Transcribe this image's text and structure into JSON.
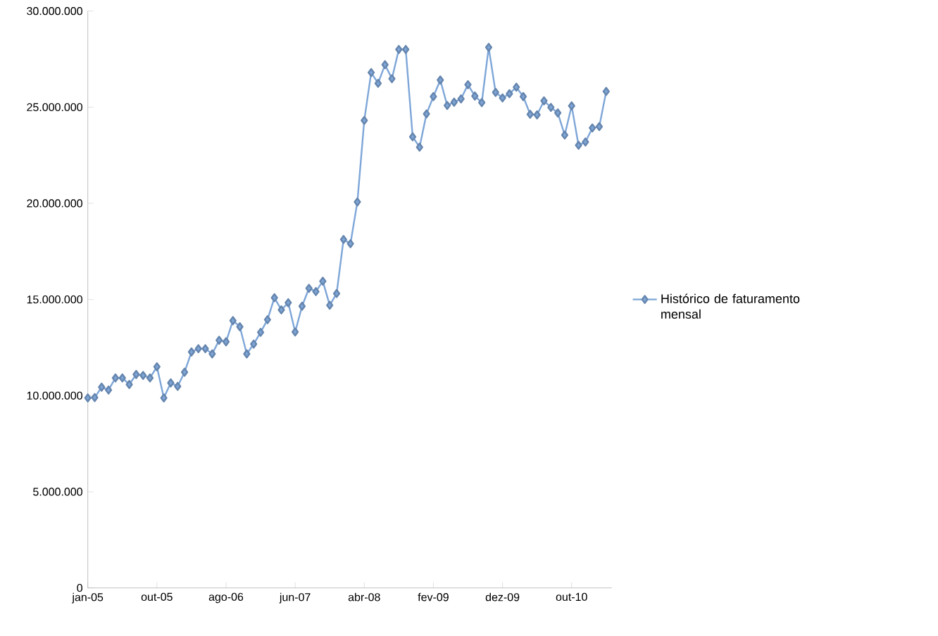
{
  "chart_data": {
    "type": "line",
    "categories": [
      "jan-05",
      null,
      null,
      null,
      null,
      null,
      null,
      null,
      null,
      null,
      "out-05",
      null,
      null,
      null,
      null,
      null,
      null,
      null,
      null,
      null,
      "ago-06",
      null,
      null,
      null,
      null,
      null,
      null,
      null,
      null,
      null,
      "jun-07",
      null,
      null,
      null,
      null,
      null,
      null,
      null,
      null,
      null,
      "abr-08",
      null,
      null,
      null,
      null,
      null,
      null,
      null,
      null,
      null,
      "fev-09",
      null,
      null,
      null,
      null,
      null,
      null,
      null,
      null,
      null,
      "dez-09",
      null,
      null,
      null,
      null,
      null,
      null,
      null,
      null,
      null,
      "out-10",
      null,
      null,
      null,
      null,
      null
    ],
    "series": [
      {
        "name": "Histórico de faturamento mensal",
        "color": "#7ea6d8",
        "values": [
          9880000,
          9900000,
          10440000,
          10290000,
          10920000,
          10920000,
          10580000,
          11100000,
          11050000,
          10920000,
          11500000,
          9880000,
          10660000,
          10480000,
          11220000,
          12270000,
          12440000,
          12440000,
          12170000,
          12880000,
          12800000,
          13900000,
          13580000,
          12170000,
          12680000,
          13290000,
          13950000,
          15090000,
          14460000,
          14830000,
          13310000,
          14650000,
          15580000,
          15410000,
          15950000,
          14700000,
          15310000,
          18120000,
          17900000,
          20070000,
          24310000,
          26800000,
          26240000,
          27210000,
          26480000,
          28000000,
          28000000,
          23460000,
          22920000,
          24650000,
          25550000,
          26410000,
          25090000,
          25260000,
          25430000,
          26170000,
          25580000,
          25240000,
          28110000,
          25770000,
          25480000,
          25700000,
          26040000,
          25550000,
          24630000,
          24600000,
          25330000,
          24990000,
          24700000,
          23550000,
          25070000,
          23020000,
          23190000,
          23920000,
          23990000,
          25820000
        ]
      }
    ],
    "ylim": [
      0,
      30000000
    ],
    "yticks": [
      {
        "value": 0,
        "label": "0"
      },
      {
        "value": 5000000,
        "label": "5.000.000"
      },
      {
        "value": 10000000,
        "label": "10.000.000"
      },
      {
        "value": 15000000,
        "label": "15.000.000"
      },
      {
        "value": 20000000,
        "label": "20.000.000"
      },
      {
        "value": 25000000,
        "label": "25.000.000"
      },
      {
        "value": 30000000,
        "label": "30.000.000"
      }
    ],
    "legend": "right",
    "marker": "diamond",
    "line_style": "solid",
    "grid": false
  }
}
